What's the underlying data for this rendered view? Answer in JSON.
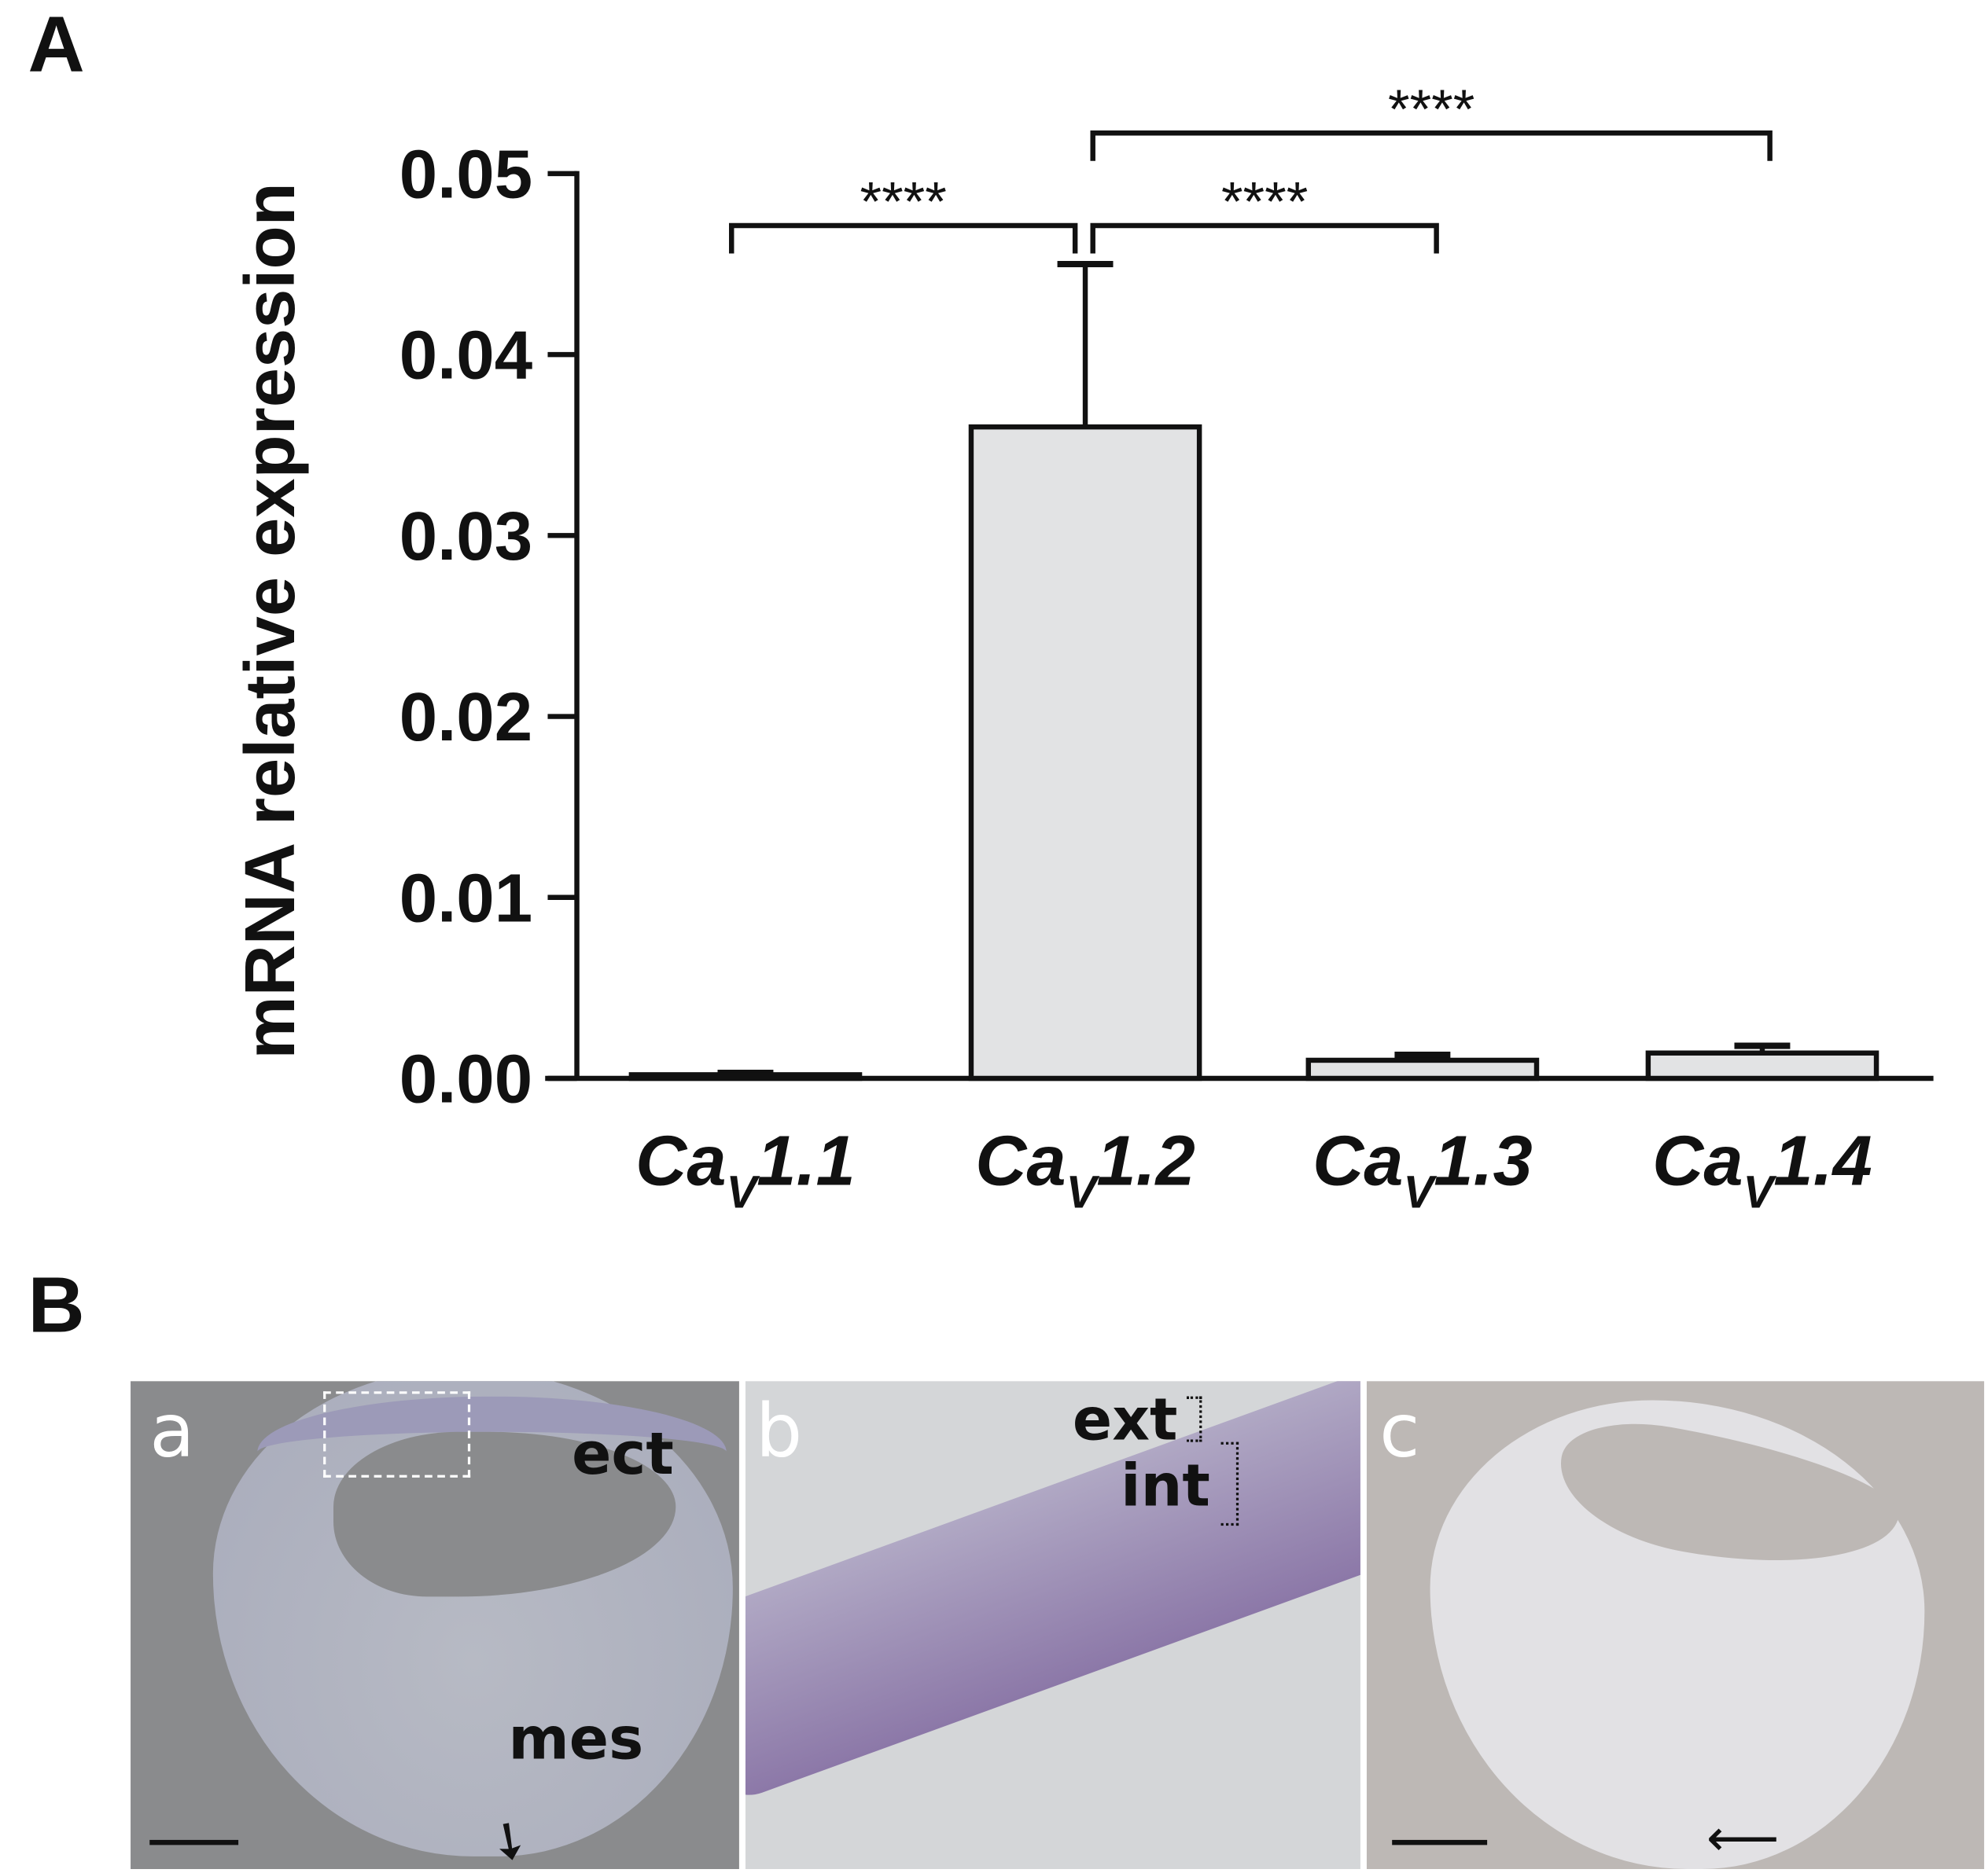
{
  "panels": {
    "a_label": "A",
    "b_label": "B"
  },
  "chart_data": {
    "type": "bar",
    "title": "",
    "xlabel": "",
    "ylabel": "mRNA relative expression",
    "ylim": [
      0,
      0.05
    ],
    "yticks": [
      "0.00",
      "0.01",
      "0.02",
      "0.03",
      "0.04",
      "0.05"
    ],
    "categories": [
      {
        "base": "Ca",
        "sub": "V",
        "suffix": "1.1"
      },
      {
        "base": "Ca",
        "sub": "V",
        "suffix": "1.2"
      },
      {
        "base": "Ca",
        "sub": "V",
        "suffix": "1.3"
      },
      {
        "base": "Ca",
        "sub": "V",
        "suffix": "1.4"
      }
    ],
    "values": [
      0.0002,
      0.036,
      0.001,
      0.0014
    ],
    "errors": [
      0.0001,
      0.009,
      0.0003,
      0.0004
    ],
    "bar_color": "#e2e3e4",
    "significance": [
      {
        "from": 0,
        "to": 1,
        "label": "****"
      },
      {
        "from": 1,
        "to": 2,
        "label": "****"
      },
      {
        "from": 1,
        "to": 3,
        "label": "****"
      }
    ],
    "grid": false
  },
  "micro": {
    "a": {
      "label": "a",
      "ect": "ect",
      "mes": "mes"
    },
    "b": {
      "label": "b",
      "ext": "ext",
      "int": "int"
    },
    "c": {
      "label": "c"
    }
  }
}
